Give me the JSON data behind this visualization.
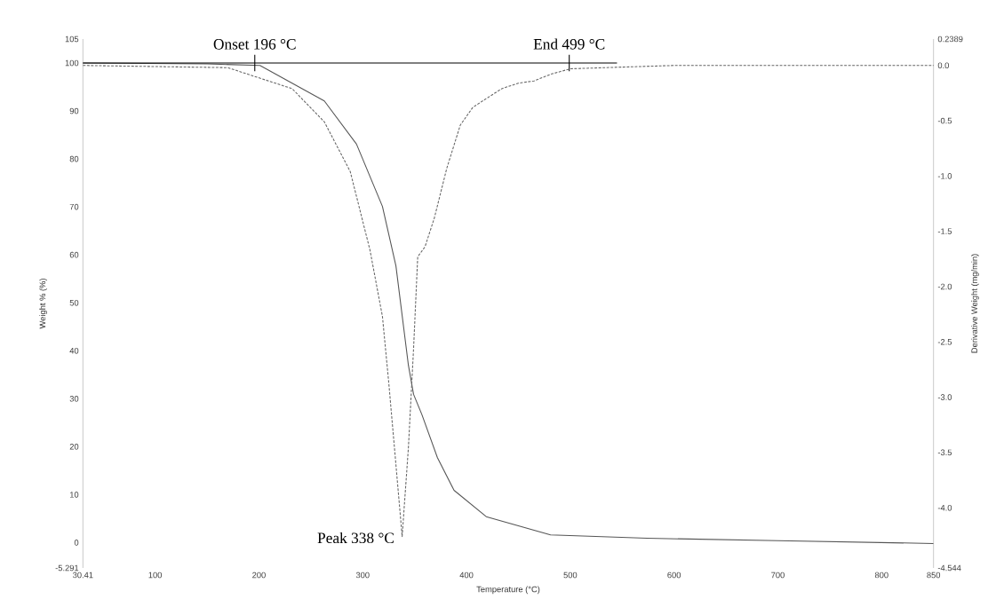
{
  "chart_data": {
    "type": "line",
    "xlabel": "Temperature (°C)",
    "ylabel": "Weight % (%)",
    "y2label": "Derivative Weight (mg/min)",
    "xlim": [
      30.41,
      850
    ],
    "xticks": [
      30.41,
      100,
      200,
      300,
      400,
      500,
      600,
      700,
      800,
      850
    ],
    "ylim": [
      -5.291,
      105
    ],
    "yticks": [
      -5.291,
      0,
      10,
      20,
      30,
      40,
      50,
      60,
      70,
      80,
      90,
      100,
      105
    ],
    "y2lim": [
      -4.544,
      0.2389
    ],
    "y2ticks": [
      0.2389,
      {
        "value": 0,
        "label": "0.0"
      },
      -0.5,
      {
        "value": -1,
        "label": "-1.0"
      },
      -1.5,
      {
        "value": -2,
        "label": "-2.0"
      },
      -2.5,
      {
        "value": -3,
        "label": "-3.0"
      },
      -3.5,
      {
        "value": -4,
        "label": "-4.0"
      },
      -4.544
    ],
    "series": [
      {
        "color": "#555555",
        "line_style": "solid",
        "x": [
          30.41,
          150,
          201,
          263,
          294,
          319,
          332,
          344,
          349,
          357,
          372,
          388,
          419,
          481,
          574,
          700,
          850
        ],
        "values": [
          100,
          99.8,
          99.5,
          92.1,
          83.1,
          70.1,
          57.7,
          37.0,
          30.9,
          26.7,
          17.7,
          10.9,
          5.4,
          1.6,
          0.9,
          0.4,
          -0.2
        ]
      },
      {
        "color": "#666666",
        "line_style": "dashed",
        "axis": "y2",
        "x": [
          30.41,
          170,
          232,
          263,
          288,
          307,
          319,
          325,
          332,
          338,
          344,
          349,
          353,
          360,
          369,
          381,
          394,
          406,
          419,
          434,
          450,
          465,
          481,
          500,
          600,
          700,
          850
        ],
        "values": [
          0,
          -0.02,
          -0.21,
          -0.51,
          -0.96,
          -1.67,
          -2.27,
          -2.86,
          -3.61,
          -4.26,
          -3.46,
          -2.56,
          -1.73,
          -1.64,
          -1.38,
          -0.93,
          -0.54,
          -0.38,
          -0.3,
          -0.21,
          -0.16,
          -0.14,
          -0.08,
          -0.03,
          0,
          0,
          0
        ]
      },
      {
        "color": "#000000",
        "line_style": "solid",
        "x": [
          30.41,
          545
        ],
        "values": [
          100,
          100
        ]
      }
    ],
    "annotations": [
      {
        "text": "Onset 196 °C",
        "x": 196,
        "y": 100
      },
      {
        "text": "End 499 °C",
        "x": 499,
        "y": 100
      },
      {
        "text": "Peak 338 °C",
        "x": 338,
        "y": 1
      }
    ]
  }
}
